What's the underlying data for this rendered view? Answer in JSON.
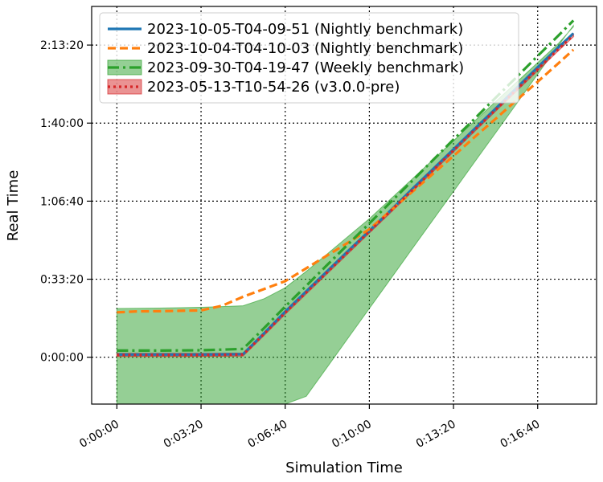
{
  "chart_data": {
    "type": "line",
    "xlabel": "Simulation Time",
    "ylabel": "Real Time",
    "xlim": [
      -60,
      1140
    ],
    "ylim": [
      -1200,
      8990
    ],
    "x_ticks": [
      {
        "value": 0,
        "label": "0:00:00"
      },
      {
        "value": 200,
        "label": "0:03:20"
      },
      {
        "value": 400,
        "label": "0:06:40"
      },
      {
        "value": 600,
        "label": "0:10:00"
      },
      {
        "value": 800,
        "label": "0:13:20"
      },
      {
        "value": 1000,
        "label": "0:16:40"
      }
    ],
    "y_ticks": [
      {
        "value": 0,
        "label": "0:00:00"
      },
      {
        "value": 2000,
        "label": "0:33:20"
      },
      {
        "value": 4000,
        "label": "1:06:40"
      },
      {
        "value": 6000,
        "label": "1:40:00"
      },
      {
        "value": 8000,
        "label": "2:13:20"
      }
    ],
    "grid": true,
    "legend_position": "top-left",
    "series": [
      {
        "name": "2023-10-05-T04-09-51 (Nightly benchmark)",
        "style": "solid",
        "color": "#1f77b4",
        "x": [
          0,
          50,
          100,
          150,
          200,
          250,
          300,
          350,
          400,
          450,
          500,
          550,
          600,
          650,
          700,
          750,
          800,
          850,
          900,
          950,
          1000,
          1050,
          1085
        ],
        "y": [
          70,
          70,
          70,
          70,
          70,
          75,
          80,
          620,
          1170,
          1690,
          2210,
          2730,
          3240,
          3760,
          4290,
          4810,
          5330,
          5850,
          6370,
          6900,
          7430,
          7950,
          8300
        ]
      },
      {
        "name": "2023-10-04-T04-10-03 (Nightly benchmark)",
        "style": "dashed",
        "color": "#ff7f0e",
        "x": [
          0,
          50,
          100,
          150,
          200,
          250,
          300,
          350,
          400,
          450,
          500,
          550,
          600,
          650,
          700,
          750,
          800,
          850,
          900,
          950,
          1000,
          1050,
          1085
        ],
        "y": [
          1150,
          1175,
          1180,
          1190,
          1200,
          1320,
          1550,
          1750,
          1950,
          2280,
          2610,
          2940,
          3280,
          3750,
          4220,
          4690,
          5160,
          5640,
          6110,
          6590,
          7060,
          7540,
          7880
        ]
      },
      {
        "name": "2023-09-30-T04-19-47 (Weekly benchmark)",
        "style": "dashdot",
        "color": "#2ca02c",
        "band": true,
        "x": [
          0,
          50,
          100,
          150,
          200,
          250,
          300,
          350,
          400,
          450,
          500,
          550,
          600,
          650,
          700,
          750,
          800,
          850,
          900,
          950,
          1000,
          1050,
          1085
        ],
        "y": [
          170,
          170,
          170,
          175,
          180,
          195,
          215,
          750,
          1300,
          1830,
          2370,
          2900,
          3430,
          3970,
          4500,
          5040,
          5580,
          6110,
          6650,
          7180,
          7720,
          8250,
          8630
        ],
        "y_lower": [
          -1200,
          -1200,
          -1200,
          -1200,
          -1200,
          -1200,
          -1200,
          -1200,
          -1200,
          -1000,
          -250,
          500,
          1250,
          2000,
          2750,
          3500,
          4250,
          5000,
          5750,
          6500,
          7250,
          8000,
          8500
        ],
        "y_upper": [
          1250,
          1255,
          1260,
          1270,
          1280,
          1300,
          1320,
          1500,
          1780,
          2200,
          2650,
          3100,
          3550,
          4050,
          4550,
          5050,
          5550,
          6050,
          6550,
          7050,
          7550,
          8050,
          8470
        ]
      },
      {
        "name": "2023-05-13-T10-54-26 (v3.0.0-pre)",
        "style": "dotted",
        "color": "#d62728",
        "band": true,
        "x": [
          0,
          50,
          100,
          150,
          200,
          250,
          300,
          350,
          400,
          450,
          500,
          550,
          600,
          650,
          700,
          750,
          800,
          850,
          900,
          950,
          1000,
          1050,
          1085
        ],
        "y": [
          60,
          60,
          60,
          60,
          60,
          65,
          70,
          600,
          1140,
          1660,
          2180,
          2700,
          3220,
          3740,
          4260,
          4780,
          5300,
          5820,
          6340,
          6860,
          7380,
          7900,
          8250
        ],
        "y_lower": [
          20,
          20,
          20,
          20,
          20,
          25,
          30,
          560,
          1100,
          1620,
          2140,
          2660,
          3180,
          3700,
          4220,
          4740,
          5260,
          5780,
          6300,
          6820,
          7340,
          7860,
          8210
        ],
        "y_upper": [
          100,
          100,
          100,
          100,
          100,
          105,
          110,
          640,
          1180,
          1700,
          2220,
          2740,
          3260,
          3780,
          4300,
          4820,
          5340,
          5860,
          6380,
          6900,
          7420,
          7940,
          8290
        ]
      }
    ]
  }
}
